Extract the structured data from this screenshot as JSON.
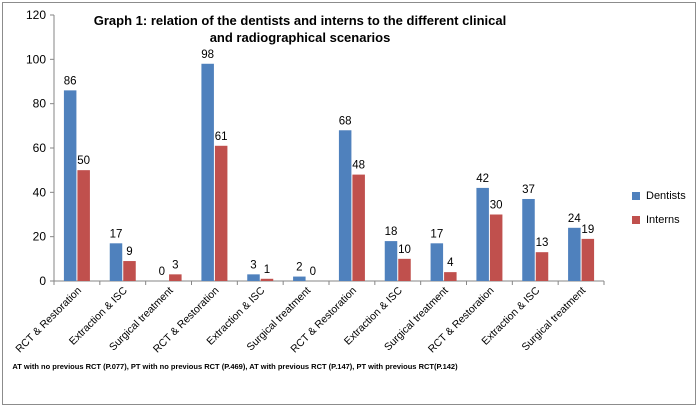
{
  "chart_data": {
    "type": "bar",
    "title": "Graph 1: relation of the dentists and interns to the different clinical and radiographical scenarios",
    "categories": [
      "RCT & Restoration",
      "Extraction & ISC",
      "Surgical  treatment",
      "RCT & Restoration",
      "Extraction & ISC",
      "Surgical  treatment",
      "RCT & Restoration",
      "Extraction & ISC",
      "Surgical  treatment",
      "RCT & Restoration",
      "Extraction & ISC",
      "Surgical  treatment"
    ],
    "series": [
      {
        "name": "Dentists",
        "color": "#4f81bd",
        "values": [
          86,
          17,
          0,
          98,
          3,
          2,
          68,
          18,
          17,
          42,
          37,
          24
        ]
      },
      {
        "name": "Interns",
        "color": "#c0504d",
        "values": [
          50,
          9,
          3,
          61,
          1,
          0,
          48,
          10,
          4,
          30,
          13,
          19
        ]
      }
    ],
    "ylim": [
      0,
      120
    ],
    "yticks": [
      0,
      20,
      40,
      60,
      80,
      100,
      120
    ],
    "grid": false,
    "legend_position": "right",
    "footnote": "AT with no previous RCT (P.077), PT with no previous RCT (P.469), AT with previous RCT (P.147), PT with previous RCT(P.142)"
  }
}
